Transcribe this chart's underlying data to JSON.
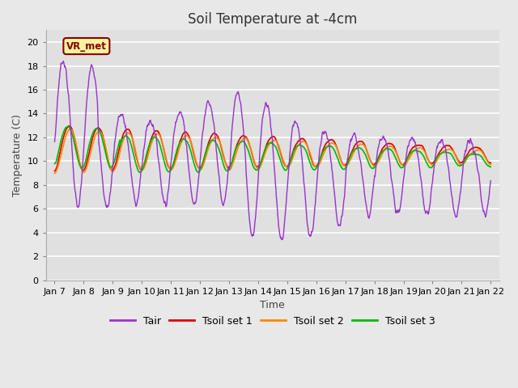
{
  "title": "Soil Temperature at -4cm",
  "xlabel": "Time",
  "ylabel": "Temperature (C)",
  "ylim": [
    0,
    21
  ],
  "yticks": [
    0,
    2,
    4,
    6,
    8,
    10,
    12,
    14,
    16,
    18,
    20
  ],
  "fig_bg": "#e8e8e8",
  "plot_bg": "#e0e0e0",
  "grid_color": "#ffffff",
  "line_colors": {
    "Tair": "#9933CC",
    "Tsoil1": "#dd0000",
    "Tsoil2": "#ff8800",
    "Tsoil3": "#00bb00"
  },
  "legend_labels": [
    "Tair",
    "Tsoil set 1",
    "Tsoil set 2",
    "Tsoil set 3"
  ],
  "annotation_text": "VR_met",
  "x_tick_labels": [
    "Jan 7",
    "Jan 8",
    "Jan 9",
    "Jan 10",
    "Jan 11",
    "Jan 12",
    "Jan 13",
    "Jan 14",
    "Jan 15",
    "Jan 16",
    "Jan 17",
    "Jan 18",
    "Jan 19",
    "Jan 20",
    "Jan 21",
    "Jan 22"
  ],
  "title_fontsize": 12,
  "axis_label_fontsize": 9,
  "tick_fontsize": 8
}
